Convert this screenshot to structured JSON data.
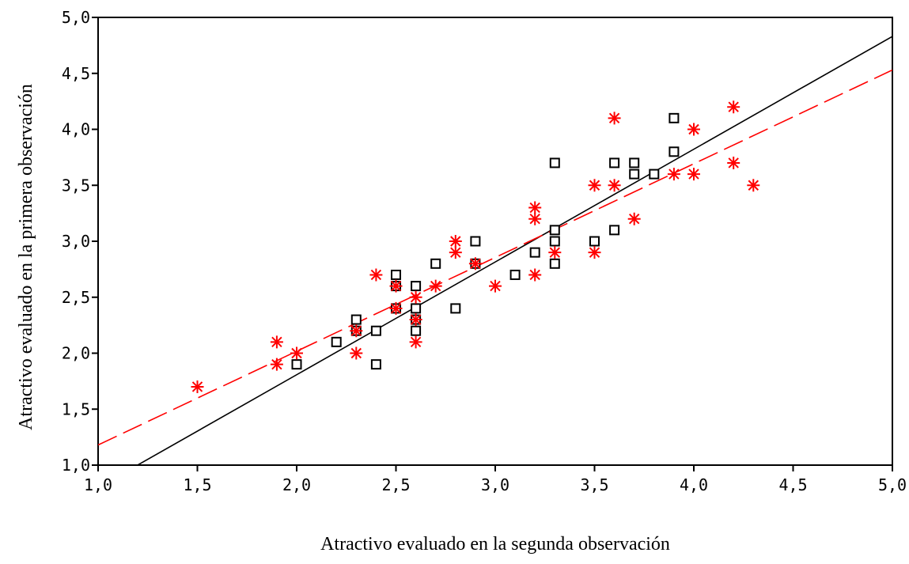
{
  "chart_data": {
    "type": "scatter",
    "xlabel": "Atractivo evaluado en la segunda observación",
    "ylabel": "Atractivo evaluado en la primera observación",
    "xlim": [
      1.0,
      5.0
    ],
    "ylim": [
      1.0,
      5.0
    ],
    "x_ticks": [
      "1,0",
      "1,5",
      "2,0",
      "2,5",
      "3,0",
      "3,5",
      "4,0",
      "4,5",
      "5,0"
    ],
    "y_ticks": [
      "1,0",
      "1,5",
      "2,0",
      "2,5",
      "3,0",
      "3,5",
      "4,0",
      "4,5",
      "5,0"
    ],
    "grid": false,
    "series": [
      {
        "marker": "square",
        "color": "#000000",
        "points": [
          [
            2.0,
            1.9
          ],
          [
            2.2,
            2.1
          ],
          [
            2.3,
            2.2
          ],
          [
            2.3,
            2.3
          ],
          [
            2.4,
            1.9
          ],
          [
            2.4,
            2.2
          ],
          [
            2.5,
            2.4
          ],
          [
            2.5,
            2.6
          ],
          [
            2.5,
            2.7
          ],
          [
            2.6,
            2.2
          ],
          [
            2.6,
            2.3
          ],
          [
            2.6,
            2.4
          ],
          [
            2.6,
            2.6
          ],
          [
            2.7,
            2.8
          ],
          [
            2.8,
            2.4
          ],
          [
            2.9,
            2.8
          ],
          [
            2.9,
            3.0
          ],
          [
            3.1,
            2.7
          ],
          [
            3.2,
            2.9
          ],
          [
            3.3,
            2.8
          ],
          [
            3.3,
            3.0
          ],
          [
            3.3,
            3.1
          ],
          [
            3.3,
            3.7
          ],
          [
            3.5,
            3.0
          ],
          [
            3.6,
            3.1
          ],
          [
            3.6,
            3.7
          ],
          [
            3.7,
            3.6
          ],
          [
            3.7,
            3.7
          ],
          [
            3.8,
            3.6
          ],
          [
            3.9,
            3.8
          ],
          [
            3.9,
            4.1
          ]
        ],
        "fit": {
          "type": "linear",
          "x1": 1.0,
          "y1": 0.8,
          "x2": 5.0,
          "y2": 4.83,
          "style": "solid"
        }
      },
      {
        "marker": "asterisk",
        "color": "#ff0000",
        "points": [
          [
            1.5,
            1.7
          ],
          [
            1.9,
            1.9
          ],
          [
            1.9,
            2.1
          ],
          [
            2.0,
            2.0
          ],
          [
            2.3,
            2.0
          ],
          [
            2.3,
            2.2
          ],
          [
            2.4,
            2.7
          ],
          [
            2.5,
            2.4
          ],
          [
            2.5,
            2.6
          ],
          [
            2.6,
            2.1
          ],
          [
            2.6,
            2.3
          ],
          [
            2.6,
            2.5
          ],
          [
            2.7,
            2.6
          ],
          [
            2.8,
            2.9
          ],
          [
            2.8,
            3.0
          ],
          [
            2.9,
            2.8
          ],
          [
            3.0,
            2.6
          ],
          [
            3.2,
            2.7
          ],
          [
            3.2,
            3.2
          ],
          [
            3.2,
            3.3
          ],
          [
            3.3,
            2.9
          ],
          [
            3.5,
            2.9
          ],
          [
            3.5,
            3.5
          ],
          [
            3.6,
            3.5
          ],
          [
            3.6,
            4.1
          ],
          [
            3.7,
            3.2
          ],
          [
            3.9,
            3.6
          ],
          [
            4.0,
            3.6
          ],
          [
            4.0,
            4.0
          ],
          [
            4.2,
            3.7
          ],
          [
            4.2,
            4.2
          ],
          [
            4.3,
            3.5
          ]
        ],
        "fit": {
          "type": "linear",
          "x1": 1.0,
          "y1": 1.18,
          "x2": 5.0,
          "y2": 4.53,
          "style": "dashed"
        }
      }
    ]
  }
}
